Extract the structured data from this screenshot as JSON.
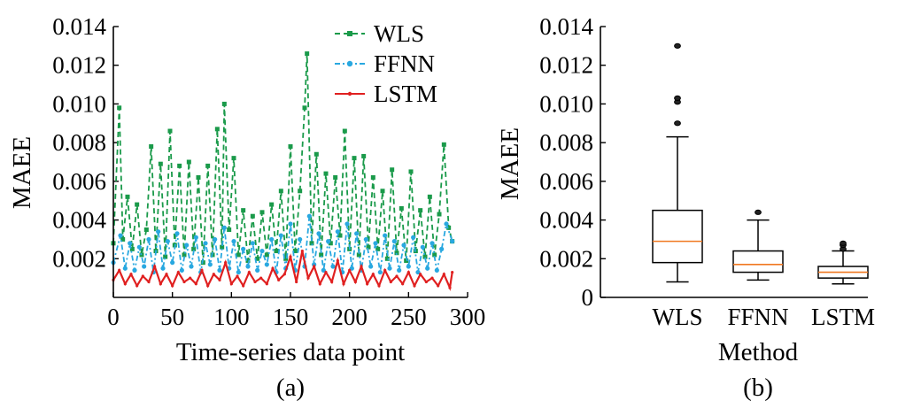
{
  "chart_data": [
    {
      "type": "line",
      "panel_label": "(a)",
      "xlabel": "Time-series data point",
      "ylabel": "MAEE",
      "xlim": [
        0,
        300
      ],
      "ylim": [
        0,
        0.014
      ],
      "xticks": [
        "0",
        "50",
        "100",
        "150",
        "200",
        "250",
        "300"
      ],
      "yticks": [
        "0.002",
        "0.004",
        "0.006",
        "0.008",
        "0.010",
        "0.012",
        "0.014"
      ],
      "legend_position": "top-right",
      "series": [
        {
          "name": "WLS",
          "color": "#1a9a4a",
          "marker": "square",
          "style": "dashed",
          "x": [
            0,
            5,
            8,
            12,
            16,
            20,
            24,
            28,
            32,
            36,
            40,
            44,
            48,
            52,
            56,
            60,
            64,
            68,
            72,
            76,
            80,
            84,
            88,
            92,
            94,
            98,
            102,
            106,
            110,
            114,
            118,
            122,
            126,
            130,
            134,
            138,
            142,
            146,
            150,
            154,
            158,
            162,
            164,
            168,
            172,
            176,
            180,
            184,
            188,
            192,
            196,
            200,
            204,
            208,
            212,
            216,
            220,
            224,
            228,
            232,
            236,
            240,
            244,
            248,
            252,
            256,
            260,
            264,
            268,
            272,
            276,
            280,
            284,
            287
          ],
          "y": [
            0.0028,
            0.0098,
            0.003,
            0.0052,
            0.0025,
            0.0048,
            0.0022,
            0.0035,
            0.0078,
            0.0024,
            0.0069,
            0.0021,
            0.0086,
            0.0027,
            0.0068,
            0.0022,
            0.007,
            0.0025,
            0.0062,
            0.0018,
            0.0068,
            0.0022,
            0.0087,
            0.0026,
            0.01,
            0.0035,
            0.0072,
            0.0022,
            0.0045,
            0.0019,
            0.0042,
            0.002,
            0.0044,
            0.0022,
            0.0048,
            0.0024,
            0.0055,
            0.002,
            0.0078,
            0.0024,
            0.0055,
            0.0098,
            0.0126,
            0.0028,
            0.0074,
            0.0022,
            0.0064,
            0.0028,
            0.0062,
            0.0032,
            0.0086,
            0.0025,
            0.0072,
            0.0022,
            0.0073,
            0.0026,
            0.0062,
            0.0025,
            0.0055,
            0.002,
            0.0066,
            0.0023,
            0.0046,
            0.0019,
            0.0065,
            0.0024,
            0.0045,
            0.0021,
            0.0052,
            0.0022,
            0.0043,
            0.0079,
            0.0036,
            0.0029
          ]
        },
        {
          "name": "FFNN",
          "color": "#29a8e0",
          "marker": "circle",
          "style": "dash-dot",
          "x": [
            0,
            6,
            10,
            14,
            18,
            22,
            26,
            30,
            34,
            38,
            42,
            46,
            50,
            54,
            58,
            62,
            66,
            70,
            74,
            78,
            82,
            86,
            90,
            94,
            98,
            102,
            106,
            110,
            114,
            118,
            122,
            126,
            130,
            134,
            138,
            142,
            146,
            150,
            154,
            158,
            162,
            166,
            170,
            174,
            178,
            182,
            186,
            190,
            194,
            198,
            202,
            206,
            210,
            214,
            218,
            222,
            226,
            230,
            234,
            238,
            242,
            246,
            250,
            254,
            258,
            262,
            266,
            270,
            274,
            278,
            282,
            287
          ],
          "y": [
            0.0018,
            0.0032,
            0.0015,
            0.0028,
            0.0014,
            0.0026,
            0.0016,
            0.003,
            0.0013,
            0.0034,
            0.0015,
            0.0029,
            0.0018,
            0.0033,
            0.0014,
            0.0027,
            0.0016,
            0.0031,
            0.0013,
            0.0028,
            0.0017,
            0.003,
            0.0014,
            0.0036,
            0.0015,
            0.0029,
            0.0013,
            0.0025,
            0.0016,
            0.0028,
            0.0014,
            0.0024,
            0.0017,
            0.003,
            0.0013,
            0.0032,
            0.0015,
            0.0038,
            0.0014,
            0.003,
            0.0016,
            0.0042,
            0.0017,
            0.0033,
            0.0014,
            0.0029,
            0.0016,
            0.0034,
            0.0013,
            0.0038,
            0.0015,
            0.0033,
            0.0014,
            0.003,
            0.0016,
            0.0028,
            0.0013,
            0.0032,
            0.0015,
            0.0029,
            0.0014,
            0.0027,
            0.0016,
            0.0031,
            0.0013,
            0.0026,
            0.0015,
            0.0028,
            0.0014,
            0.0025,
            0.0038,
            0.0029
          ]
        },
        {
          "name": "LSTM",
          "color": "#e02020",
          "marker": "dot",
          "style": "solid",
          "x": [
            0,
            5,
            10,
            15,
            20,
            25,
            30,
            35,
            40,
            45,
            50,
            55,
            60,
            65,
            70,
            75,
            80,
            85,
            90,
            95,
            100,
            105,
            110,
            115,
            120,
            125,
            130,
            135,
            140,
            145,
            150,
            155,
            160,
            165,
            170,
            175,
            180,
            185,
            190,
            195,
            200,
            205,
            210,
            215,
            220,
            225,
            230,
            235,
            240,
            245,
            250,
            255,
            260,
            265,
            270,
            275,
            280,
            285,
            287
          ],
          "y": [
            0.0009,
            0.0014,
            0.0007,
            0.0012,
            0.0006,
            0.0011,
            0.0008,
            0.0016,
            0.0007,
            0.0012,
            0.0006,
            0.0013,
            0.0008,
            0.001,
            0.0007,
            0.0014,
            0.0006,
            0.0012,
            0.0009,
            0.0018,
            0.0007,
            0.0011,
            0.0006,
            0.0013,
            0.0008,
            0.001,
            0.0007,
            0.0015,
            0.0009,
            0.0012,
            0.0021,
            0.0008,
            0.0024,
            0.001,
            0.0016,
            0.0007,
            0.0013,
            0.0008,
            0.0019,
            0.0007,
            0.0014,
            0.0008,
            0.0016,
            0.0007,
            0.0012,
            0.0006,
            0.0014,
            0.0008,
            0.0011,
            0.0007,
            0.0013,
            0.0006,
            0.0012,
            0.0008,
            0.001,
            0.0006,
            0.0012,
            0.0005,
            0.0013
          ]
        }
      ]
    },
    {
      "type": "box",
      "panel_label": "(b)",
      "xlabel": "Method",
      "ylabel": "MAEE",
      "ylim": [
        0,
        0.014
      ],
      "yticks": [
        "0",
        "0.002",
        "0.004",
        "0.006",
        "0.008",
        "0.010",
        "0.012",
        "0.014"
      ],
      "categories": [
        "WLS",
        "FFNN",
        "LSTM"
      ],
      "median_color": "#f07820",
      "boxes": [
        {
          "name": "WLS",
          "whisker_low": 0.0008,
          "q1": 0.0018,
          "median": 0.0029,
          "q3": 0.0045,
          "whisker_high": 0.0083,
          "outliers": [
            0.009,
            0.0101,
            0.0103,
            0.013
          ]
        },
        {
          "name": "FFNN",
          "whisker_low": 0.0009,
          "q1": 0.0013,
          "median": 0.0017,
          "q3": 0.0024,
          "whisker_high": 0.004,
          "outliers": [
            0.0044
          ]
        },
        {
          "name": "LSTM",
          "whisker_low": 0.0007,
          "q1": 0.001,
          "median": 0.0013,
          "q3": 0.0016,
          "whisker_high": 0.0024,
          "outliers": [
            0.0025,
            0.0027,
            0.0028
          ]
        }
      ]
    }
  ]
}
